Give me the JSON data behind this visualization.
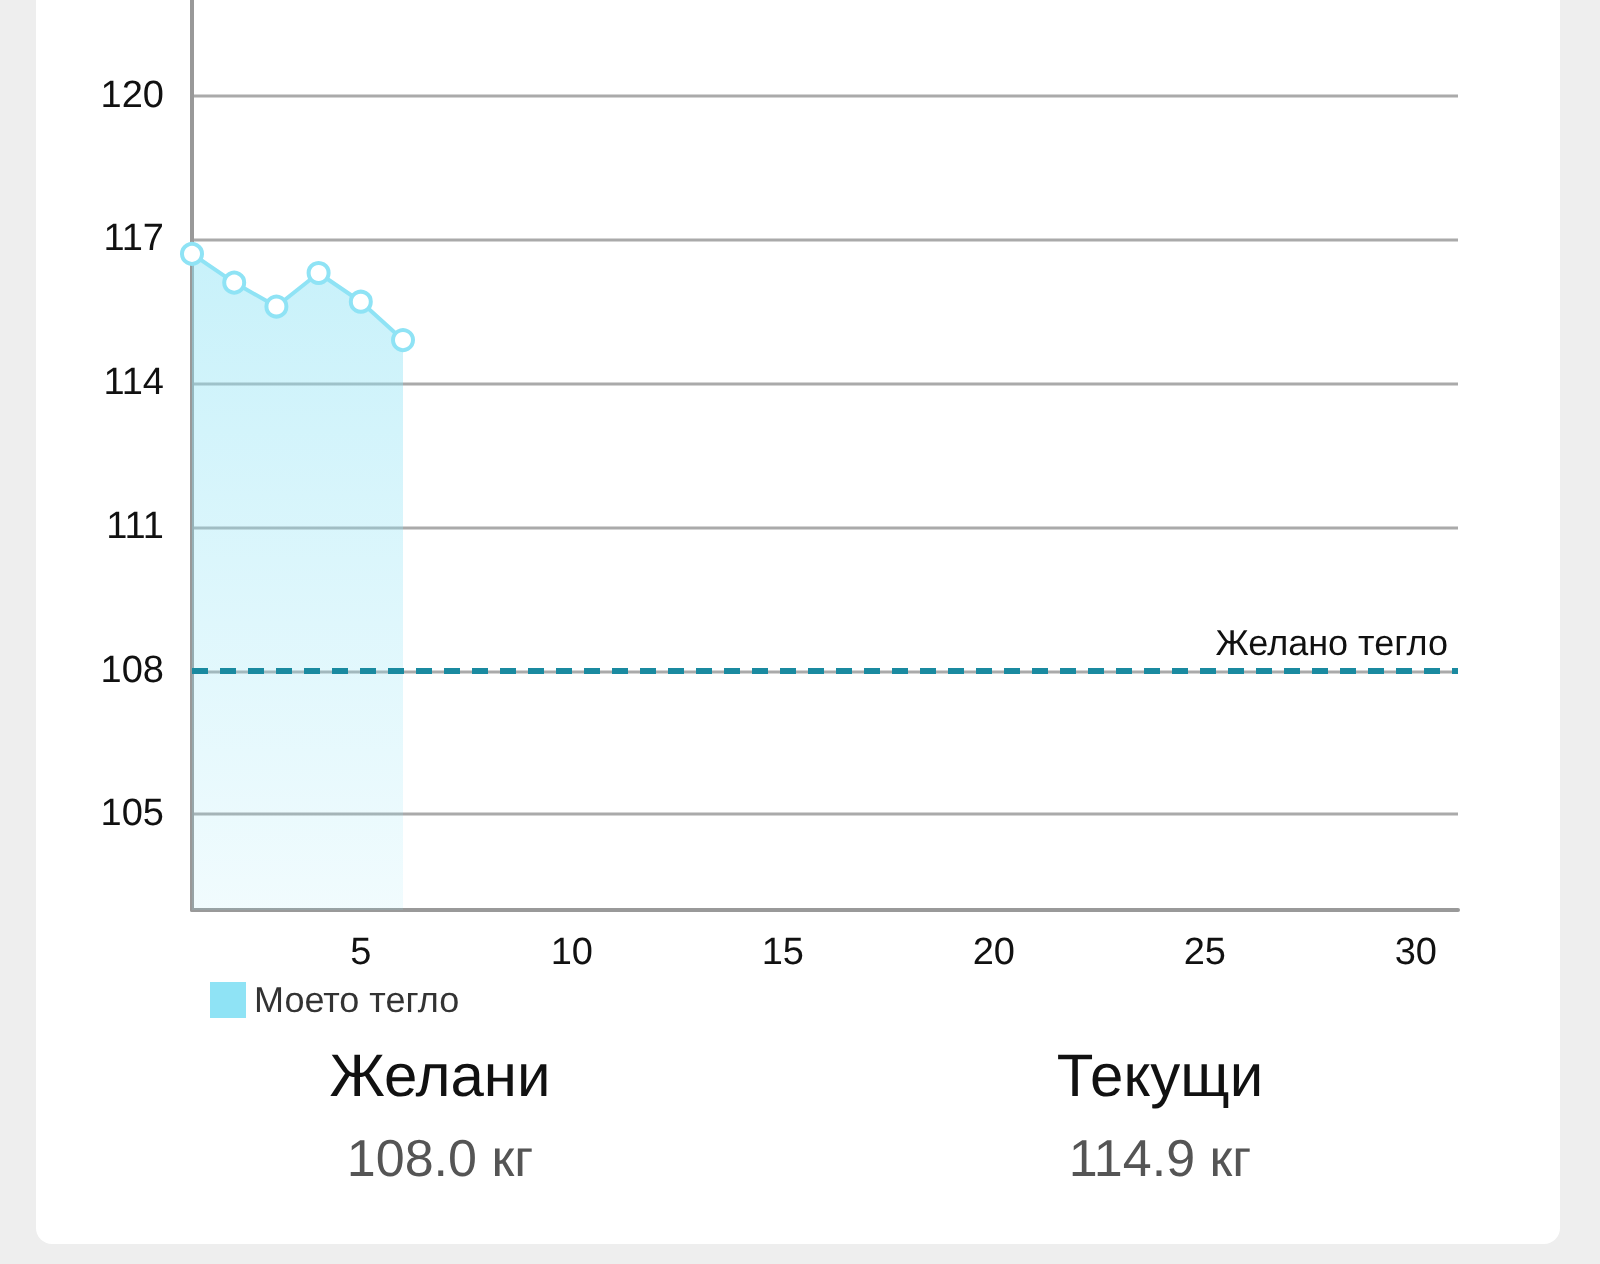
{
  "chart_data": {
    "type": "area",
    "x": [
      1,
      2,
      3,
      4,
      5,
      6
    ],
    "series": [
      {
        "name": "Моето тегло",
        "color": "#8fe3f5",
        "values": [
          116.7,
          116.1,
          115.6,
          116.3,
          115.7,
          114.9
        ]
      }
    ],
    "xlim": [
      1,
      31
    ],
    "xticks": [
      5,
      10,
      15,
      20,
      25,
      30
    ],
    "ylim": [
      103,
      122
    ],
    "yticks": [
      105,
      108,
      111,
      114,
      117,
      120
    ],
    "grid": "y",
    "legend": "bottom left",
    "marker": "circle",
    "ref_lines": [
      {
        "axis": "y",
        "value": 108,
        "label": "Желано тегло",
        "color": "#1a8aa0",
        "line_style": "dashed"
      }
    ],
    "annotations": [
      "Желани",
      "108.0 кг",
      "Текущи",
      "114.9 кг"
    ]
  }
}
